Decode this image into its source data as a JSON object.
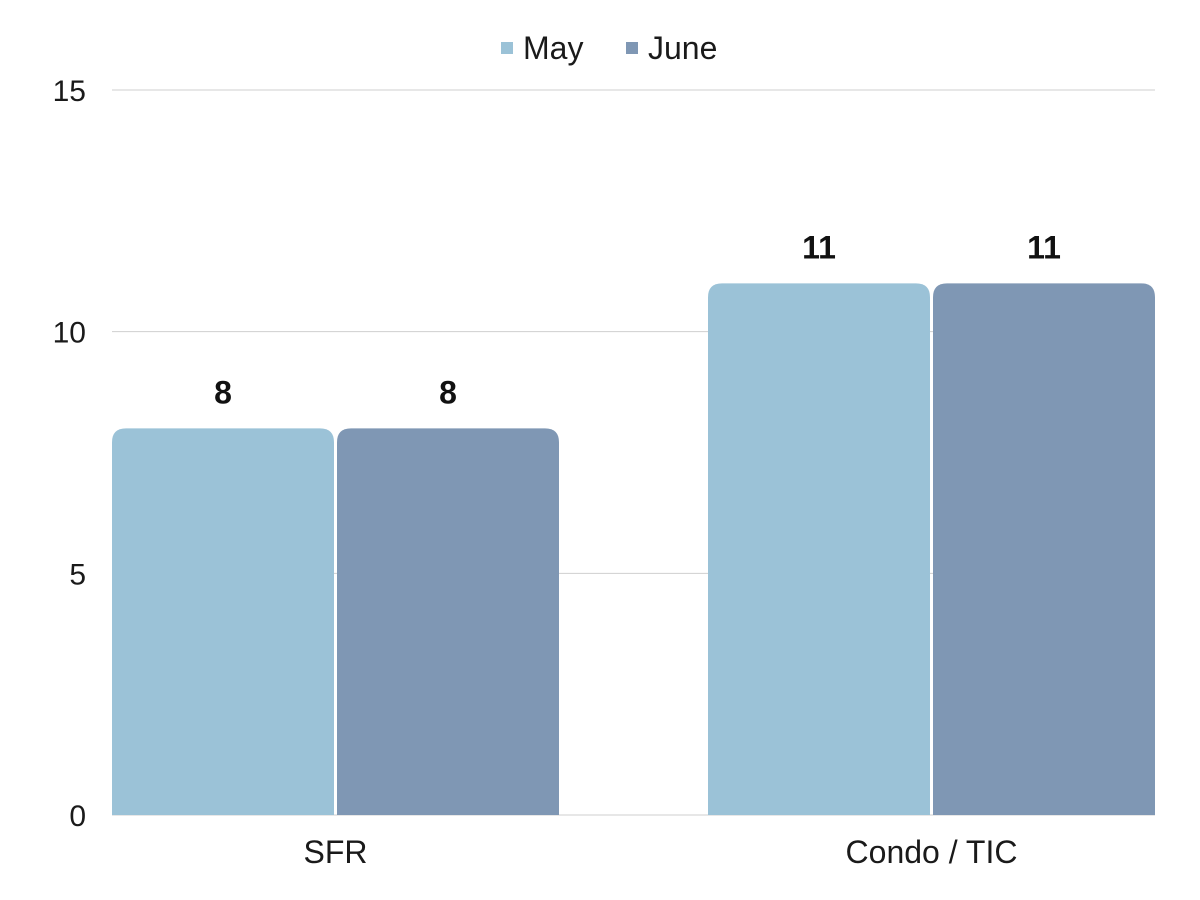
{
  "chart_data": {
    "type": "bar",
    "categories": [
      "SFR",
      "Condo / TIC"
    ],
    "series": [
      {
        "name": "May",
        "values": [
          8,
          11
        ],
        "color": "#9bc2d7"
      },
      {
        "name": "June",
        "values": [
          8,
          11
        ],
        "color": "#7f97b4"
      }
    ],
    "ylim": [
      0,
      15
    ],
    "yticks": [
      0,
      5,
      10,
      15
    ],
    "grid": true,
    "legend_position": "top-center",
    "data_labels": true
  }
}
